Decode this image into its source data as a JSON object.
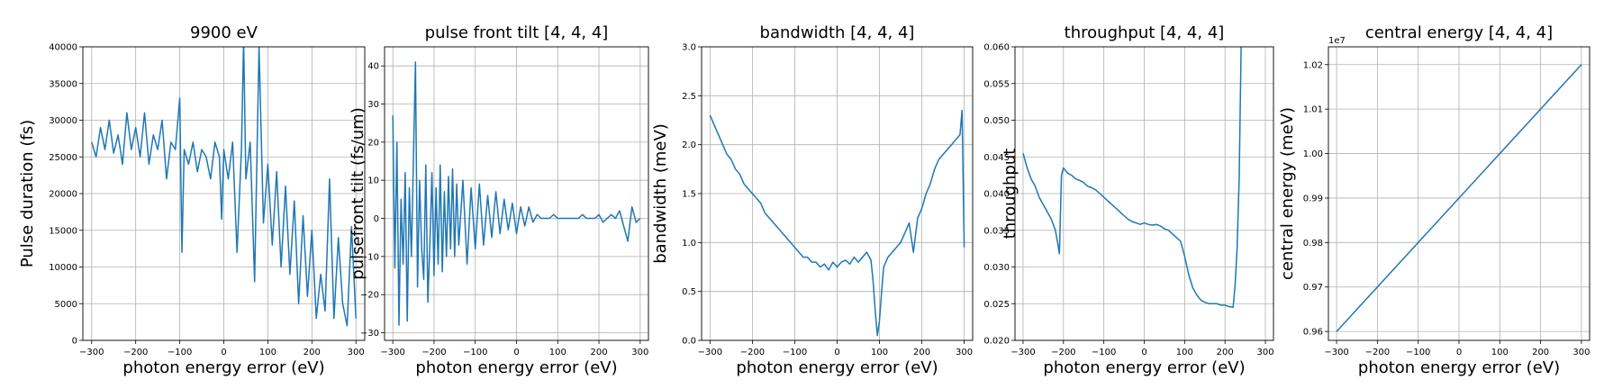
{
  "chart_data": [
    {
      "type": "line",
      "title": "9900 eV",
      "xlabel": "photon energy error (eV)",
      "ylabel": "Pulse duration (fs)",
      "xlim": [
        -320,
        320
      ],
      "ylim": [
        0,
        40000
      ],
      "xticks": [
        -300,
        -200,
        -100,
        0,
        100,
        200,
        300
      ],
      "yticks": [
        0,
        5000,
        10000,
        15000,
        20000,
        25000,
        30000,
        35000,
        40000
      ],
      "ytick_labels": [
        "0",
        "5000",
        "10000",
        "15000",
        "20000",
        "25000",
        "30000",
        "35000",
        "40000"
      ],
      "grid": true,
      "series": [
        {
          "color": "#1f77b4",
          "x": [
            -300,
            -290,
            -280,
            -270,
            -260,
            -250,
            -240,
            -230,
            -220,
            -210,
            -200,
            -190,
            -180,
            -170,
            -160,
            -150,
            -140,
            -130,
            -120,
            -110,
            -100,
            -95,
            -90,
            -80,
            -70,
            -60,
            -50,
            -40,
            -30,
            -20,
            -10,
            -5,
            0,
            10,
            20,
            30,
            40,
            45,
            50,
            60,
            70,
            80,
            90,
            100,
            110,
            120,
            130,
            140,
            150,
            160,
            170,
            180,
            190,
            200,
            210,
            220,
            230,
            240,
            250,
            260,
            270,
            280,
            290,
            300
          ],
          "y": [
            27000,
            25000,
            29000,
            26000,
            30000,
            25500,
            28000,
            24000,
            31000,
            26000,
            29000,
            25000,
            31000,
            24000,
            28000,
            26000,
            30000,
            22000,
            27000,
            26000,
            33000,
            12000,
            26000,
            24000,
            27000,
            23000,
            26000,
            25000,
            22000,
            27000,
            25000,
            16500,
            26000,
            22000,
            27000,
            12000,
            26000,
            41000,
            22000,
            27000,
            8000,
            40000,
            16000,
            24000,
            13000,
            23000,
            10000,
            21000,
            9000,
            19000,
            5000,
            17000,
            6000,
            15000,
            3000,
            9000,
            4000,
            22000,
            3000,
            14000,
            5000,
            2000,
            15500,
            3000
          ]
        }
      ]
    },
    {
      "type": "line",
      "title": "pulse front tilt [4, 4, 4]",
      "xlabel": "photon energy error (eV)",
      "ylabel": "pulsefront tilt (fs/um)",
      "xlim": [
        -320,
        320
      ],
      "ylim": [
        -32,
        45
      ],
      "xticks": [
        -300,
        -200,
        -100,
        0,
        100,
        200,
        300
      ],
      "yticks": [
        -30,
        -20,
        -10,
        0,
        10,
        20,
        30,
        40
      ],
      "ytick_labels": [
        "−30",
        "−20",
        "−10",
        "0",
        "10",
        "20",
        "30",
        "40"
      ],
      "grid": true,
      "series": [
        {
          "color": "#1f77b4",
          "x": [
            -300,
            -295,
            -290,
            -285,
            -280,
            -275,
            -270,
            -265,
            -260,
            -255,
            -250,
            -245,
            -240,
            -235,
            -230,
            -225,
            -220,
            -215,
            -210,
            -205,
            -200,
            -195,
            -190,
            -185,
            -180,
            -175,
            -170,
            -165,
            -160,
            -155,
            -150,
            -145,
            -140,
            -130,
            -120,
            -110,
            -100,
            -90,
            -80,
            -70,
            -60,
            -50,
            -40,
            -30,
            -20,
            -10,
            0,
            10,
            20,
            30,
            40,
            50,
            60,
            70,
            80,
            90,
            100,
            110,
            120,
            130,
            140,
            150,
            160,
            170,
            180,
            190,
            200,
            210,
            220,
            230,
            240,
            250,
            260,
            270,
            280,
            290,
            300
          ],
          "y": [
            27,
            -13,
            20,
            -28,
            5,
            -12,
            12,
            -27,
            8,
            -10,
            15,
            41,
            -18,
            10,
            -8,
            -16,
            14,
            -22,
            -6,
            12,
            -15,
            8,
            -12,
            14,
            -14,
            7,
            -10,
            11,
            -8,
            13,
            -10,
            9,
            -7,
            10,
            -12,
            8,
            -8,
            9,
            -7,
            6,
            -5,
            7,
            -4,
            5,
            -3,
            4,
            -4,
            3,
            -2,
            3,
            -1,
            1,
            0,
            0,
            0,
            1,
            0,
            0,
            0,
            0,
            0,
            0,
            1,
            0,
            0,
            0,
            1,
            -1,
            0,
            1,
            0,
            2,
            -2,
            -6,
            3,
            -1,
            0
          ]
        }
      ]
    },
    {
      "type": "line",
      "title": "bandwidth [4, 4, 4]",
      "xlabel": "photon energy error (eV)",
      "ylabel": "bandwidth (meV)",
      "xlim": [
        -320,
        320
      ],
      "ylim": [
        0,
        3.0
      ],
      "xticks": [
        -300,
        -200,
        -100,
        0,
        100,
        200,
        300
      ],
      "yticks": [
        0,
        0.5,
        1.0,
        1.5,
        2.0,
        2.5,
        3.0
      ],
      "ytick_labels": [
        "0.0",
        "0.5",
        "1.0",
        "1.5",
        "2.0",
        "2.5",
        "3.0"
      ],
      "grid": true,
      "series": [
        {
          "color": "#1f77b4",
          "x": [
            -300,
            -290,
            -280,
            -270,
            -260,
            -250,
            -240,
            -230,
            -220,
            -210,
            -200,
            -190,
            -180,
            -170,
            -160,
            -150,
            -140,
            -130,
            -120,
            -110,
            -100,
            -90,
            -80,
            -70,
            -60,
            -50,
            -40,
            -30,
            -20,
            -10,
            0,
            10,
            20,
            30,
            40,
            50,
            60,
            70,
            80,
            85,
            90,
            95,
            100,
            105,
            110,
            120,
            130,
            140,
            150,
            160,
            170,
            180,
            190,
            200,
            210,
            220,
            230,
            240,
            250,
            260,
            270,
            280,
            290,
            295,
            300
          ],
          "y": [
            2.3,
            2.2,
            2.1,
            2.0,
            1.9,
            1.85,
            1.75,
            1.7,
            1.6,
            1.55,
            1.5,
            1.45,
            1.4,
            1.3,
            1.25,
            1.2,
            1.15,
            1.1,
            1.05,
            1.0,
            0.95,
            0.9,
            0.85,
            0.85,
            0.8,
            0.8,
            0.75,
            0.78,
            0.72,
            0.8,
            0.75,
            0.8,
            0.82,
            0.78,
            0.85,
            0.8,
            0.85,
            0.9,
            0.82,
            0.6,
            0.3,
            0.05,
            0.2,
            0.5,
            0.75,
            0.85,
            0.9,
            0.95,
            1.0,
            1.1,
            1.2,
            0.9,
            1.25,
            1.35,
            1.5,
            1.6,
            1.75,
            1.85,
            1.9,
            1.95,
            2.0,
            2.05,
            2.1,
            2.35,
            0.95
          ]
        }
      ]
    },
    {
      "type": "line",
      "title": "throughput [4, 4, 4]",
      "xlabel": "photon energy error (eV)",
      "ylabel": "throughput",
      "xlim": [
        -320,
        320
      ],
      "ylim": [
        0.02,
        0.06
      ],
      "xticks": [
        -300,
        -200,
        -100,
        0,
        100,
        200,
        300
      ],
      "yticks": [
        0.02,
        0.025,
        0.03,
        0.035,
        0.04,
        0.045,
        0.05,
        0.055,
        0.06
      ],
      "ytick_labels": [
        "0.020",
        "0.025",
        "0.030",
        "0.035",
        "0.040",
        "0.045",
        "0.050",
        "0.055",
        "0.060"
      ],
      "grid": true,
      "series": [
        {
          "color": "#1f77b4",
          "x": [
            -300,
            -290,
            -280,
            -270,
            -260,
            -250,
            -240,
            -230,
            -220,
            -215,
            -210,
            -205,
            -200,
            -190,
            -180,
            -170,
            -160,
            -150,
            -140,
            -130,
            -120,
            -110,
            -100,
            -90,
            -80,
            -70,
            -60,
            -50,
            -40,
            -30,
            -20,
            -10,
            0,
            10,
            20,
            30,
            40,
            50,
            60,
            70,
            80,
            90,
            100,
            110,
            120,
            130,
            140,
            150,
            160,
            170,
            180,
            190,
            200,
            210,
            220,
            225,
            230,
            235,
            240
          ],
          "y": [
            0.0455,
            0.0435,
            0.042,
            0.041,
            0.0395,
            0.0385,
            0.0375,
            0.0365,
            0.035,
            0.0335,
            0.0318,
            0.0425,
            0.0435,
            0.0428,
            0.0425,
            0.042,
            0.0418,
            0.0415,
            0.041,
            0.0408,
            0.0405,
            0.04,
            0.0395,
            0.039,
            0.0385,
            0.038,
            0.0375,
            0.037,
            0.0365,
            0.0362,
            0.036,
            0.0358,
            0.036,
            0.0358,
            0.0357,
            0.0358,
            0.0356,
            0.0352,
            0.035,
            0.0345,
            0.034,
            0.0335,
            0.0315,
            0.029,
            0.0272,
            0.0262,
            0.0255,
            0.0252,
            0.025,
            0.025,
            0.025,
            0.0248,
            0.0248,
            0.0246,
            0.0245,
            0.0275,
            0.0325,
            0.042,
            0.06
          ]
        }
      ]
    },
    {
      "type": "line",
      "title": "central energy [4, 4, 4]",
      "xlabel": "photon energy error (eV)",
      "ylabel": "central energy (meV)",
      "xlim": [
        -320,
        320
      ],
      "ylim": [
        0.958,
        1.024
      ],
      "scale_note": "1e7",
      "xticks": [
        -300,
        -200,
        -100,
        0,
        100,
        200,
        300
      ],
      "yticks": [
        0.96,
        0.97,
        0.98,
        0.99,
        1.0,
        1.01,
        1.02
      ],
      "ytick_labels": [
        "0.96",
        "0.97",
        "0.98",
        "0.99",
        "1.00",
        "1.01",
        "1.02"
      ],
      "grid": true,
      "series": [
        {
          "color": "#1f77b4",
          "x": [
            -300,
            300
          ],
          "y": [
            0.96,
            1.02
          ]
        }
      ]
    }
  ]
}
